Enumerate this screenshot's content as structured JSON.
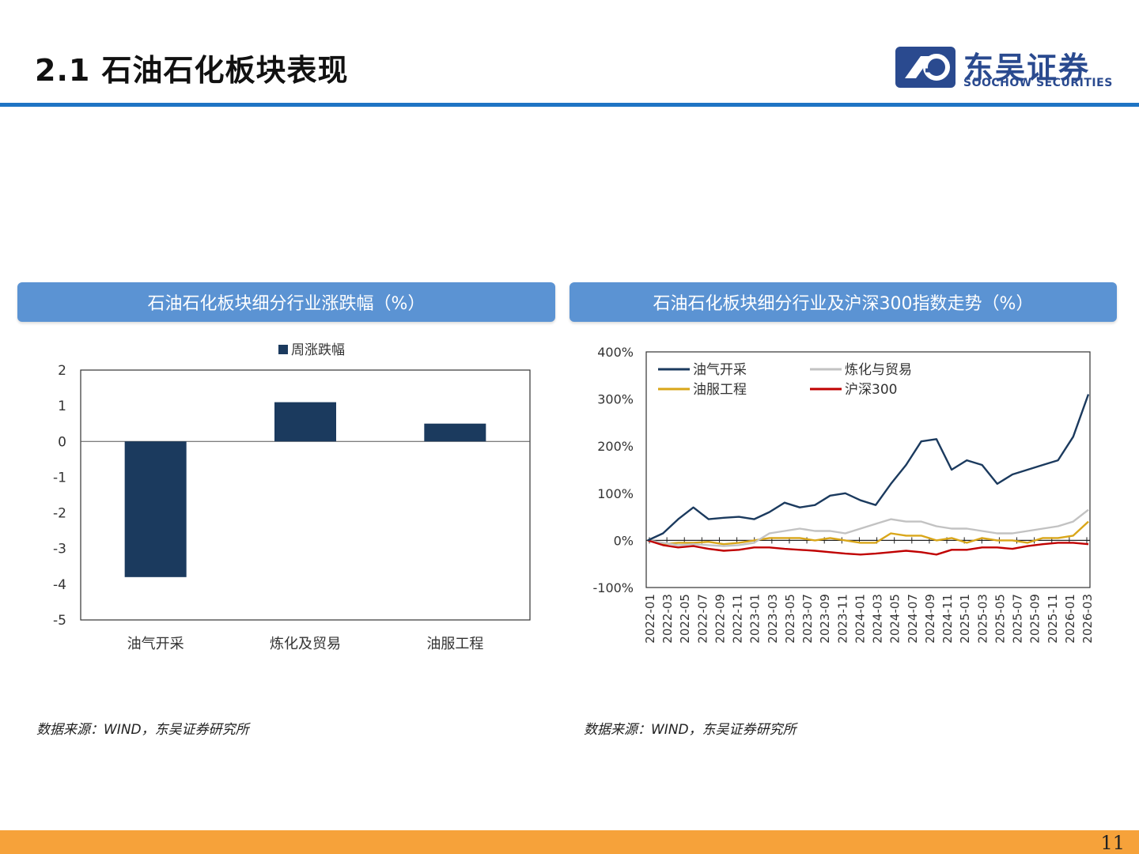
{
  "header": {
    "title": "2.1 石油石化板块表现"
  },
  "logo": {
    "cn": "东吴证券",
    "en": "SOOCHOW SECURITIES"
  },
  "panels": {
    "left_title": "石油石化板块细分行业涨跌幅（%）",
    "right_title": "石油石化板块细分行业及沪深300指数走势（%）"
  },
  "sources": {
    "left": "数据来源：WIND，东吴证券研究所",
    "right": "数据来源：WIND，东吴证券研究所"
  },
  "page_number": "11",
  "colors": {
    "accent_blue": "#1e74c4",
    "header_blue": "#5b93d3",
    "bar_navy": "#1b3a5e",
    "orange": "#f6a23a",
    "series_oil": "#1b3a5e",
    "series_refine": "#c2c2c2",
    "series_service": "#d9a619",
    "series_hs300": "#c00000"
  },
  "chart_data": [
    {
      "type": "bar",
      "legend": [
        "周涨跌幅"
      ],
      "categories": [
        "油气开采",
        "炼化及贸易",
        "油服工程"
      ],
      "series": [
        {
          "name": "周涨跌幅",
          "values": [
            -3.8,
            1.1,
            0.5
          ]
        }
      ],
      "ylim": [
        -5,
        2
      ],
      "yticks": [
        "2",
        "1",
        "0",
        "-1",
        "-2",
        "-3",
        "-4",
        "-5"
      ],
      "grid": false
    },
    {
      "type": "line",
      "x_ticks": [
        "2022-01",
        "2022-03",
        "2022-05",
        "2022-07",
        "2022-09",
        "2022-11",
        "2023-01",
        "2023-03",
        "2023-05",
        "2023-07",
        "2023-09",
        "2023-11",
        "2024-01",
        "2024-03",
        "2024-05",
        "2024-07",
        "2024-09",
        "2024-11",
        "2025-01",
        "2025-03",
        "2025-05",
        "2025-07",
        "2025-09",
        "2025-11",
        "2026-01",
        "2026-03"
      ],
      "y_ticks": [
        "400%",
        "300%",
        "200%",
        "100%",
        "0%",
        "-100%"
      ],
      "ylim": [
        -100,
        400
      ],
      "legend_position": "top-left",
      "series": [
        {
          "name": "油气开采",
          "color": "#1b3a5e",
          "values": [
            0,
            15,
            45,
            70,
            45,
            48,
            50,
            45,
            60,
            80,
            70,
            75,
            95,
            100,
            85,
            75,
            120,
            160,
            210,
            215,
            150,
            170,
            160,
            120,
            140,
            150,
            160,
            170,
            220,
            310
          ]
        },
        {
          "name": "炼化与贸易",
          "color": "#c2c2c2",
          "values": [
            0,
            -5,
            -10,
            -8,
            -10,
            -12,
            -10,
            -5,
            15,
            20,
            25,
            20,
            20,
            15,
            25,
            35,
            45,
            40,
            40,
            30,
            25,
            25,
            20,
            15,
            15,
            20,
            25,
            30,
            40,
            65
          ]
        },
        {
          "name": "油服工程",
          "color": "#d9a619",
          "values": [
            0,
            -8,
            -5,
            -5,
            -3,
            -8,
            -5,
            0,
            5,
            5,
            5,
            0,
            5,
            0,
            -5,
            -5,
            15,
            10,
            10,
            0,
            5,
            -5,
            5,
            0,
            0,
            -5,
            5,
            5,
            10,
            40
          ]
        },
        {
          "name": "沪深300",
          "color": "#c00000",
          "values": [
            0,
            -10,
            -15,
            -12,
            -18,
            -22,
            -20,
            -15,
            -15,
            -18,
            -20,
            -22,
            -25,
            -28,
            -30,
            -28,
            -25,
            -22,
            -25,
            -30,
            -20,
            -20,
            -15,
            -15,
            -18,
            -12,
            -8,
            -5,
            -5,
            -8
          ]
        }
      ]
    }
  ]
}
